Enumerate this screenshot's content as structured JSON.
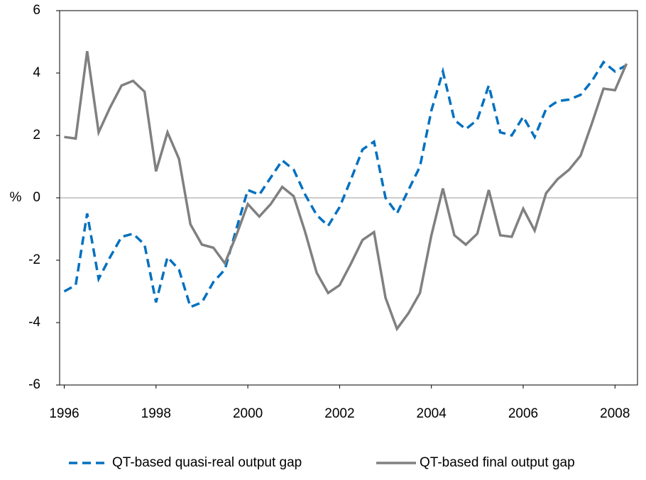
{
  "chart_data": {
    "type": "line",
    "y_label": "%",
    "x": [
      1996,
      1996.25,
      1996.5,
      1996.75,
      1997,
      1997.25,
      1997.5,
      1997.75,
      1998,
      1998.25,
      1998.5,
      1998.75,
      1999,
      1999.25,
      1999.5,
      1999.75,
      2000,
      2000.25,
      2000.5,
      2000.75,
      2001,
      2001.25,
      2001.5,
      2001.75,
      2002,
      2002.25,
      2002.5,
      2002.75,
      2003,
      2003.25,
      2003.5,
      2003.75,
      2004,
      2004.25,
      2004.5,
      2004.75,
      2005,
      2005.25,
      2005.5,
      2005.75,
      2006,
      2006.25,
      2006.5,
      2006.75,
      2007,
      2007.25,
      2007.5,
      2007.75,
      2008,
      2008.25
    ],
    "series": [
      {
        "name": "QT-based quasi-real output gap",
        "color": "#0070c0",
        "dashed": true,
        "values": [
          -3.0,
          -2.8,
          -0.5,
          -2.6,
          -1.9,
          -1.25,
          -1.15,
          -1.5,
          -3.35,
          -1.9,
          -2.3,
          -3.5,
          -3.35,
          -2.7,
          -2.3,
          -1.0,
          0.25,
          0.1,
          0.65,
          1.2,
          0.9,
          0.1,
          -0.55,
          -0.9,
          -0.3,
          0.6,
          1.55,
          1.8,
          0,
          -0.5,
          0.25,
          1.0,
          2.8,
          4.05,
          2.5,
          2.2,
          2.5,
          3.6,
          2.1,
          2.0,
          2.6,
          1.95,
          2.85,
          3.1,
          3.15,
          3.3,
          3.75,
          4.35,
          4.05,
          4.25
        ]
      },
      {
        "name": "QT-based final output gap",
        "color": "#808080",
        "dashed": false,
        "values": [
          1.95,
          1.9,
          4.7,
          2.1,
          2.9,
          3.6,
          3.75,
          3.4,
          0.85,
          2.1,
          1.25,
          -0.85,
          -1.5,
          -1.6,
          -2.1,
          -1.2,
          -0.2,
          -0.6,
          -0.2,
          0.35,
          0.05,
          -1.1,
          -2.4,
          -3.05,
          -2.8,
          -2.1,
          -1.35,
          -1.1,
          -3.2,
          -4.2,
          -3.7,
          -3.05,
          -1.2,
          0.3,
          -1.2,
          -1.5,
          -1.15,
          0.25,
          -1.2,
          -1.25,
          -0.35,
          -1.05,
          0.15,
          0.6,
          0.9,
          1.35,
          2.4,
          3.5,
          3.45,
          4.3
        ]
      }
    ],
    "xlim": [
      1995.9,
      2008.49
    ],
    "xticks": [
      1996,
      1998,
      2000,
      2002,
      2004,
      2006,
      2008
    ],
    "ylim": [
      -6,
      6
    ],
    "yticks": [
      -6,
      -4,
      -2,
      0,
      2,
      4,
      6
    ],
    "zero_line": true,
    "legend": "bottom"
  }
}
